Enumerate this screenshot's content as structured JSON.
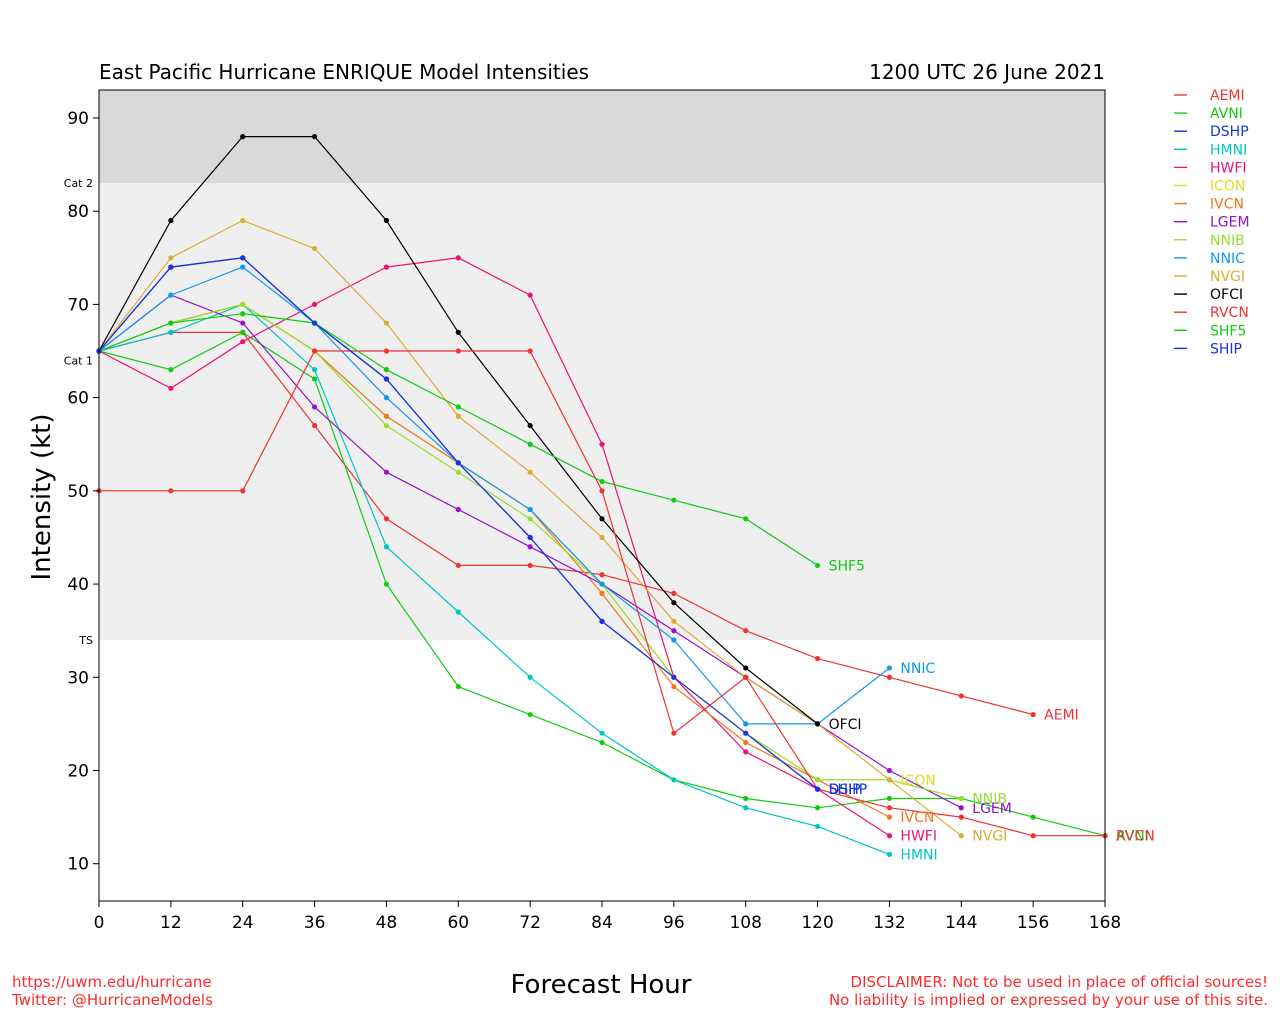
{
  "header": {
    "title": "East Pacific Hurricane ENRIQUE Model Intensities",
    "date": "1200 UTC 26 June 2021"
  },
  "footer": {
    "url": "https://uwm.edu/hurricane",
    "twitter": "Twitter: @HurricaneModels",
    "disclaimer_1": "DISCLAIMER: Not to be used in place of official sources!",
    "disclaimer_2": "No liability is implied or expressed by your use of this site."
  },
  "chart_data": {
    "type": "line",
    "title": "East Pacific Hurricane ENRIQUE Model Intensities",
    "xlabel": "Forecast Hour",
    "ylabel": "Intensity (kt)",
    "xlim": [
      0,
      168
    ],
    "ylim": [
      6,
      93
    ],
    "xticks": [
      0,
      12,
      24,
      36,
      48,
      60,
      72,
      84,
      96,
      108,
      120,
      132,
      144,
      156,
      168
    ],
    "yticks": [
      10,
      20,
      30,
      40,
      50,
      60,
      70,
      80,
      90
    ],
    "grid": false,
    "legend": "right-outside",
    "bands": [
      {
        "label": "",
        "from": 83,
        "to": 93,
        "color": "#d9d9d9"
      },
      {
        "label": "Cat 2",
        "from": 64,
        "to": 83,
        "color": "#efefef"
      },
      {
        "label": "Cat 1",
        "from": 34,
        "to": 64,
        "color": "#efefef"
      },
      {
        "label": "TS",
        "from": 6,
        "to": 34,
        "color": "#ffffff"
      }
    ],
    "series": [
      {
        "name": "AEMI",
        "color": "#ee3333",
        "end_label": "AEMI",
        "x": [
          0,
          12,
          24,
          36,
          48,
          60,
          72,
          84,
          96,
          108,
          120,
          132,
          144,
          156
        ],
        "y": [
          65,
          67,
          67,
          57,
          47,
          42,
          42,
          41,
          39,
          35,
          32,
          30,
          28,
          26
        ]
      },
      {
        "name": "AVNI",
        "color": "#10cc10",
        "end_label": "AVNI",
        "x": [
          0,
          12,
          24,
          36,
          48,
          60,
          72,
          84,
          96,
          108,
          120,
          132,
          144,
          156,
          168
        ],
        "y": [
          65,
          63,
          67,
          62,
          40,
          29,
          26,
          23,
          19,
          17,
          16,
          17,
          17,
          15,
          13
        ]
      },
      {
        "name": "DSHP",
        "color": "#1a33dd",
        "end_label": "DSHP",
        "x": [
          0,
          12,
          24,
          36,
          48,
          60,
          72,
          84,
          96,
          108,
          120
        ],
        "y": [
          65,
          74,
          75,
          68,
          62,
          53,
          45,
          36,
          30,
          24,
          18
        ]
      },
      {
        "name": "HMNI",
        "color": "#00c6c6",
        "end_label": "HMNI",
        "x": [
          0,
          12,
          24,
          36,
          48,
          60,
          72,
          84,
          96,
          108,
          120,
          132
        ],
        "y": [
          65,
          67,
          70,
          63,
          44,
          37,
          30,
          24,
          19,
          16,
          14,
          11
        ]
      },
      {
        "name": "HWFI",
        "color": "#ee1177",
        "end_label": "HWFI",
        "x": [
          0,
          12,
          24,
          36,
          48,
          60,
          72,
          84,
          96,
          108,
          120,
          132
        ],
        "y": [
          65,
          61,
          66,
          70,
          74,
          75,
          71,
          55,
          30,
          22,
          18,
          13
        ]
      },
      {
        "name": "ICON",
        "color": "#dddd22",
        "end_label": "ICON",
        "x": [
          0,
          12,
          24,
          36,
          48,
          60,
          72,
          84,
          96,
          108,
          120,
          132
        ],
        "y": [
          65,
          68,
          70,
          65,
          58,
          53,
          48,
          40,
          30,
          24,
          19,
          19
        ]
      },
      {
        "name": "IVCN",
        "color": "#ee7722",
        "end_label": "IVCN",
        "x": [
          0,
          12,
          24,
          36,
          48,
          60,
          72,
          84,
          96,
          108,
          120,
          132
        ],
        "y": [
          65,
          68,
          70,
          65,
          58,
          53,
          48,
          39,
          29,
          23,
          19,
          15
        ]
      },
      {
        "name": "LGEM",
        "color": "#9911cc",
        "end_label": "LGEM",
        "x": [
          0,
          12,
          24,
          36,
          48,
          60,
          72,
          84,
          96,
          108,
          120,
          132,
          144
        ],
        "y": [
          65,
          71,
          68,
          59,
          52,
          48,
          44,
          40,
          35,
          30,
          25,
          20,
          16
        ]
      },
      {
        "name": "NNIB",
        "color": "#99dd33",
        "end_label": "NNIB",
        "x": [
          0,
          12,
          24,
          36,
          48,
          60,
          72,
          84,
          96,
          108,
          120,
          132,
          144
        ],
        "y": [
          65,
          68,
          70,
          65,
          57,
          52,
          47,
          40,
          30,
          24,
          19,
          19,
          17
        ]
      },
      {
        "name": "NNIC",
        "color": "#1199ee",
        "end_label": "NNIC",
        "x": [
          0,
          12,
          24,
          36,
          48,
          60,
          72,
          84,
          96,
          108,
          120,
          132
        ],
        "y": [
          65,
          71,
          74,
          68,
          60,
          53,
          48,
          40,
          34,
          25,
          25,
          31
        ]
      },
      {
        "name": "NVGI",
        "color": "#ddaa33",
        "end_label": "NVGI",
        "x": [
          0,
          12,
          24,
          36,
          48,
          60,
          72,
          84,
          96,
          108,
          120,
          132,
          144
        ],
        "y": [
          65,
          75,
          79,
          76,
          68,
          58,
          52,
          45,
          36,
          30,
          25,
          19,
          13
        ]
      },
      {
        "name": "OFCI",
        "color": "#000000",
        "end_label": "OFCI",
        "x": [
          0,
          12,
          24,
          36,
          48,
          60,
          72,
          84,
          96,
          108,
          120
        ],
        "y": [
          65,
          79,
          88,
          88,
          79,
          67,
          57,
          47,
          38,
          31,
          25
        ]
      },
      {
        "name": "RVCN",
        "color": "#ee3333",
        "end_label": "RVCN",
        "x": [
          0,
          12,
          24,
          36,
          48,
          60,
          72,
          84,
          96,
          108,
          120,
          132,
          144,
          156,
          168
        ],
        "y": [
          50,
          50,
          50,
          65,
          65,
          65,
          65,
          50,
          24,
          30,
          18,
          16,
          15,
          13,
          13
        ]
      },
      {
        "name": "SHF5",
        "color": "#10cc10",
        "end_label": "SHF5",
        "x": [
          0,
          12,
          24,
          36,
          48,
          60,
          72,
          84,
          96,
          108,
          120
        ],
        "y": [
          65,
          68,
          69,
          68,
          63,
          59,
          55,
          51,
          49,
          47,
          42
        ]
      },
      {
        "name": "SHIP",
        "color": "#1a33dd",
        "end_label": "SHIP",
        "x": [
          0,
          12,
          24,
          36,
          48,
          60,
          72,
          84,
          96,
          108,
          120
        ],
        "y": [
          65,
          74,
          75,
          68,
          62,
          53,
          45,
          36,
          30,
          24,
          18
        ]
      }
    ]
  }
}
